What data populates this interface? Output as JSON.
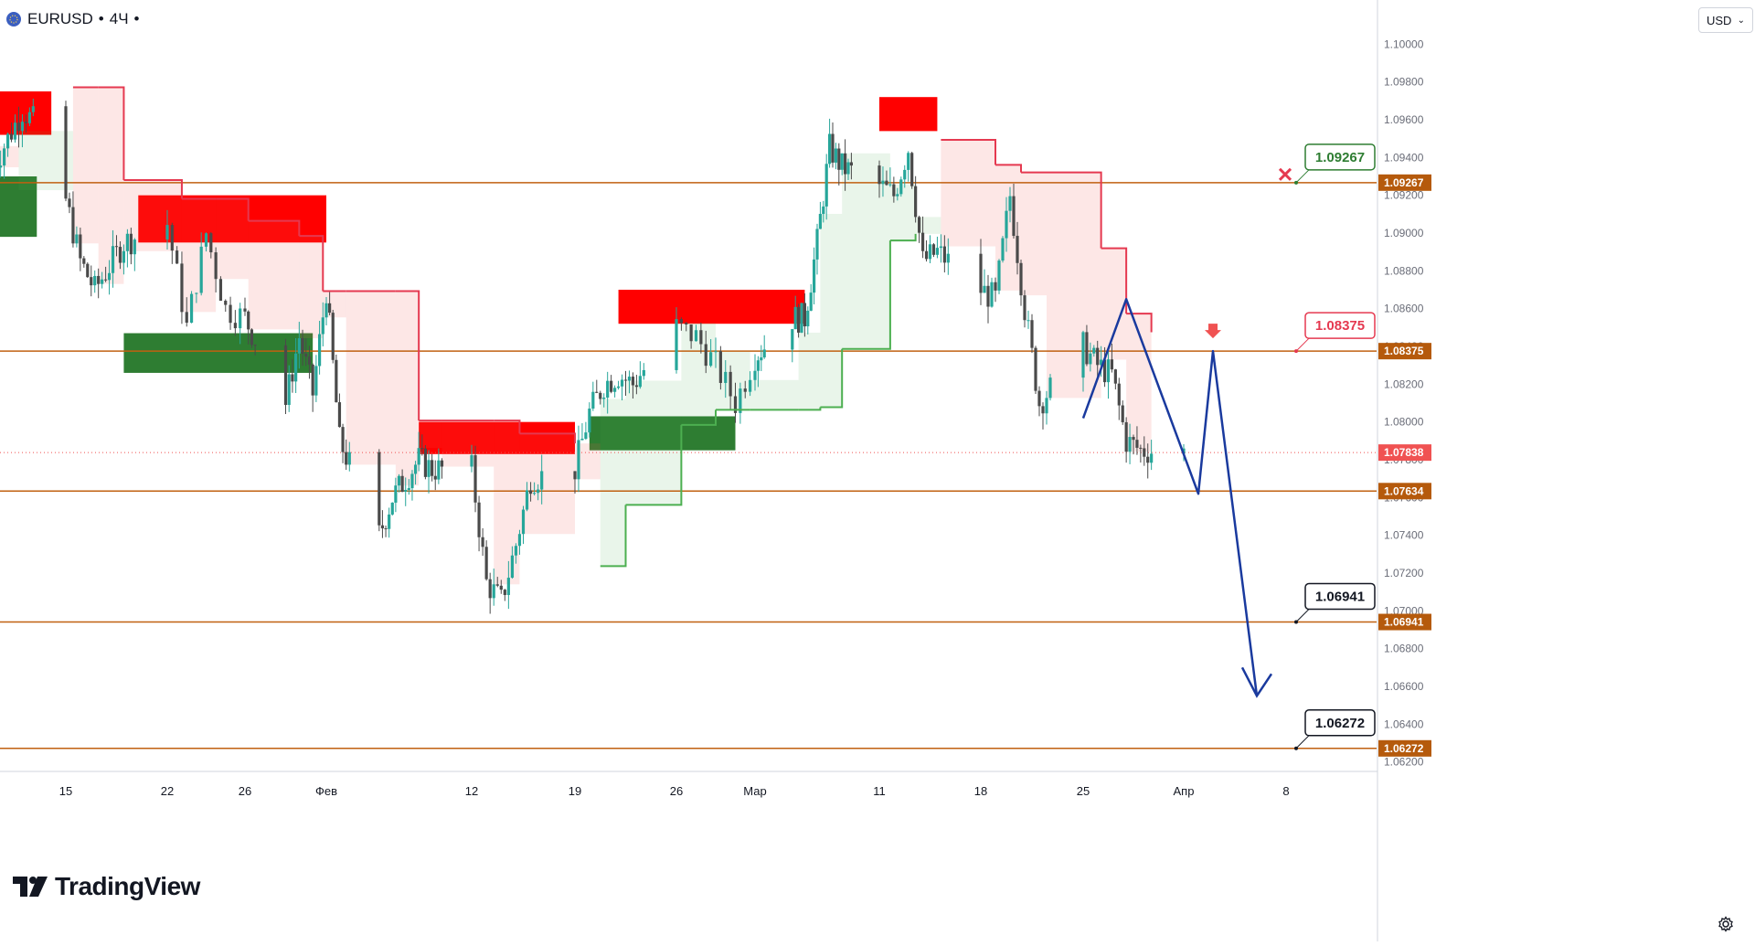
{
  "header": {
    "symbol": "EURUSD",
    "sep1": "•",
    "timeframe": "4Ч",
    "sep2": "•"
  },
  "currency_selector": {
    "label": "USD"
  },
  "logo": {
    "text": "TradingView"
  },
  "colors": {
    "bull": "#26a69a",
    "candle": "#4a4a4a",
    "level_line": "#c06010",
    "level_tag": "#b55a0c",
    "supply_zone": "#ff0000",
    "demand_zone": "#2e7d32",
    "stop_red": "#e53950",
    "stop_green": "#4caf50",
    "projection": "#1a3a9e",
    "current_price_tag": "#f05252"
  },
  "chart_data": {
    "type": "candlestick",
    "symbol": "EURUSD",
    "timeframe": "4Ч",
    "y_range": [
      1.0615,
      1.1005
    ],
    "y_ticks": [
      "1.10000",
      "1.09800",
      "1.09600",
      "1.09400",
      "1.09200",
      "1.09000",
      "1.08800",
      "1.08600",
      "1.08400",
      "1.08200",
      "1.08000",
      "1.07800",
      "1.07600",
      "1.07400",
      "1.07200",
      "1.07000",
      "1.06800",
      "1.06600",
      "1.06400",
      "1.06200"
    ],
    "x_ticks": [
      {
        "label": "15",
        "date": "2024-01-15"
      },
      {
        "label": "22",
        "date": "2024-01-22"
      },
      {
        "label": "26",
        "date": "2024-01-26"
      },
      {
        "label": "Фев",
        "date": "2024-02-01"
      },
      {
        "label": "12",
        "date": "2024-02-12"
      },
      {
        "label": "19",
        "date": "2024-02-19"
      },
      {
        "label": "26",
        "date": "2024-02-26"
      },
      {
        "label": "Мар",
        "date": "2024-03-01"
      },
      {
        "label": "11",
        "date": "2024-03-11"
      },
      {
        "label": "18",
        "date": "2024-03-18"
      },
      {
        "label": "25",
        "date": "2024-03-25"
      },
      {
        "label": "Апр",
        "date": "2024-04-01"
      },
      {
        "label": "8",
        "date": "2024-04-08"
      }
    ],
    "close_path": [
      {
        "date": "2024-01-10",
        "price": 1.0935
      },
      {
        "date": "2024-01-12",
        "price": 1.0965
      },
      {
        "date": "2024-01-14",
        "price": 1.095
      },
      {
        "date": "2024-01-16",
        "price": 1.0885
      },
      {
        "date": "2024-01-17",
        "price": 1.087
      },
      {
        "date": "2024-01-19",
        "price": 1.0895
      },
      {
        "date": "2024-01-22",
        "price": 1.0905
      },
      {
        "date": "2024-01-23",
        "price": 1.085
      },
      {
        "date": "2024-01-24",
        "price": 1.09
      },
      {
        "date": "2024-01-25",
        "price": 1.086
      },
      {
        "date": "2024-01-26",
        "price": 1.0855
      },
      {
        "date": "2024-01-29",
        "price": 1.081
      },
      {
        "date": "2024-01-30",
        "price": 1.0845
      },
      {
        "date": "2024-01-31",
        "price": 1.0815
      },
      {
        "date": "2024-02-01",
        "price": 1.087
      },
      {
        "date": "2024-02-02",
        "price": 1.079
      },
      {
        "date": "2024-02-05",
        "price": 1.074
      },
      {
        "date": "2024-02-06",
        "price": 1.076
      },
      {
        "date": "2024-02-08",
        "price": 1.078
      },
      {
        "date": "2024-02-09",
        "price": 1.0775
      },
      {
        "date": "2024-02-12",
        "price": 1.0775
      },
      {
        "date": "2024-02-13",
        "price": 1.0715
      },
      {
        "date": "2024-02-14",
        "price": 1.0705
      },
      {
        "date": "2024-02-15",
        "price": 1.0735
      },
      {
        "date": "2024-02-16",
        "price": 1.077
      },
      {
        "date": "2024-02-19",
        "price": 1.0775
      },
      {
        "date": "2024-02-20",
        "price": 1.0805
      },
      {
        "date": "2024-02-21",
        "price": 1.082
      },
      {
        "date": "2024-02-22",
        "price": 1.0825
      },
      {
        "date": "2024-02-23",
        "price": 1.082
      },
      {
        "date": "2024-02-26",
        "price": 1.085
      },
      {
        "date": "2024-02-27",
        "price": 1.0845
      },
      {
        "date": "2024-02-28",
        "price": 1.083
      },
      {
        "date": "2024-02-29",
        "price": 1.081
      },
      {
        "date": "2024-03-01",
        "price": 1.0835
      },
      {
        "date": "2024-03-04",
        "price": 1.0855
      },
      {
        "date": "2024-03-05",
        "price": 1.0855
      },
      {
        "date": "2024-03-06",
        "price": 1.0895
      },
      {
        "date": "2024-03-07",
        "price": 1.0945
      },
      {
        "date": "2024-03-08",
        "price": 1.0935
      },
      {
        "date": "2024-03-11",
        "price": 1.0925
      },
      {
        "date": "2024-03-12",
        "price": 1.092
      },
      {
        "date": "2024-03-13",
        "price": 1.0945
      },
      {
        "date": "2024-03-14",
        "price": 1.0885
      },
      {
        "date": "2024-03-15",
        "price": 1.089
      },
      {
        "date": "2024-03-18",
        "price": 1.087
      },
      {
        "date": "2024-03-19",
        "price": 1.0865
      },
      {
        "date": "2024-03-20",
        "price": 1.092
      },
      {
        "date": "2024-03-21",
        "price": 1.086
      },
      {
        "date": "2024-03-22",
        "price": 1.081
      },
      {
        "date": "2024-03-25",
        "price": 1.084
      },
      {
        "date": "2024-03-26",
        "price": 1.083
      },
      {
        "date": "2024-03-27",
        "price": 1.0825
      },
      {
        "date": "2024-03-28",
        "price": 1.079
      },
      {
        "date": "2024-03-29",
        "price": 1.0785
      },
      {
        "date": "2024-04-01",
        "price": 1.0784
      }
    ],
    "horizontal_levels": [
      {
        "price": 1.09267,
        "label": "1.09267"
      },
      {
        "price": 1.08375,
        "label": "1.08375"
      },
      {
        "price": 1.07634,
        "label": "1.07634"
      },
      {
        "price": 1.06941,
        "label": "1.06941"
      },
      {
        "price": 1.06272,
        "label": "1.06272"
      }
    ],
    "current_price": {
      "price": 1.07838,
      "label": "1.07838"
    },
    "level_callouts": [
      {
        "price": 1.09267,
        "label": "1.09267",
        "style": "green",
        "marker": "x"
      },
      {
        "price": 1.08375,
        "label": "1.08375",
        "style": "red"
      },
      {
        "price": 1.06941,
        "label": "1.06941",
        "style": "black"
      },
      {
        "price": 1.06272,
        "label": "1.06272",
        "style": "black"
      }
    ],
    "supply_zones": [
      {
        "from": "2024-01-10",
        "to": "2024-01-14",
        "top": 1.0975,
        "bottom": 1.0952
      },
      {
        "from": "2024-01-20",
        "to": "2024-02-01",
        "top": 1.092,
        "bottom": 1.0895
      },
      {
        "from": "2024-02-08",
        "to": "2024-02-19",
        "top": 1.08,
        "bottom": 1.0783
      },
      {
        "from": "2024-02-22",
        "to": "2024-03-05",
        "top": 1.087,
        "bottom": 1.0852
      },
      {
        "from": "2024-03-11",
        "to": "2024-03-15",
        "top": 1.0972,
        "bottom": 1.0954
      }
    ],
    "demand_zones": [
      {
        "from": "2024-01-10",
        "to": "2024-01-13",
        "top": 1.093,
        "bottom": 1.0898
      },
      {
        "from": "2024-01-19",
        "to": "2024-01-31",
        "top": 1.0847,
        "bottom": 1.0826
      },
      {
        "from": "2024-02-20",
        "to": "2024-02-29",
        "top": 1.0803,
        "bottom": 1.0785
      }
    ],
    "projection_path": [
      {
        "date": "2024-03-25",
        "price": 1.0802
      },
      {
        "date": "2024-03-28",
        "price": 1.0865
      },
      {
        "date": "2024-04-02",
        "price": 1.0762
      },
      {
        "date": "2024-04-03",
        "price": 1.08375
      },
      {
        "date": "2024-04-06",
        "price": 1.0655
      }
    ]
  }
}
